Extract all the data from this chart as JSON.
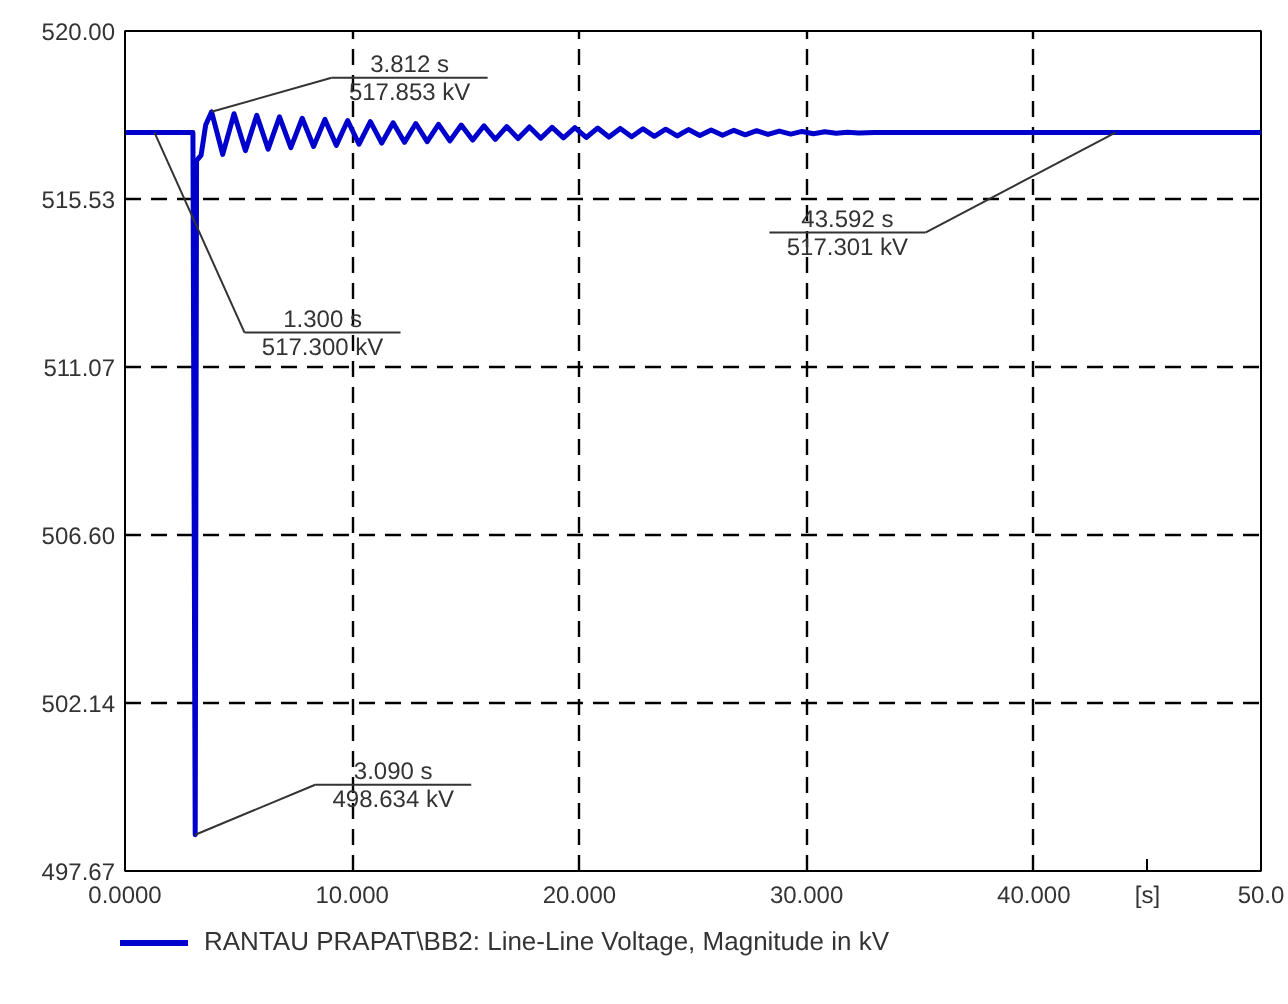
{
  "chart_data": {
    "type": "line",
    "xlabel": "[s]",
    "xlim": [
      0,
      50
    ],
    "ylim": [
      497.67,
      520.0
    ],
    "xticks": [
      {
        "value": 0,
        "label": "0.0000"
      },
      {
        "value": 10,
        "label": "10.000"
      },
      {
        "value": 20,
        "label": "20.000"
      },
      {
        "value": 30,
        "label": "30.000"
      },
      {
        "value": 40,
        "label": "40.000"
      },
      {
        "value": 50,
        "label": "50.0"
      }
    ],
    "yticks": [
      {
        "value": 497.67,
        "label": "497.67"
      },
      {
        "value": 502.14,
        "label": "502.14"
      },
      {
        "value": 506.6,
        "label": "506.60"
      },
      {
        "value": 511.07,
        "label": "511.07"
      },
      {
        "value": 515.53,
        "label": "515.53"
      },
      {
        "value": 520.0,
        "label": "520.00"
      }
    ],
    "grid": true,
    "legend": "bottom",
    "line_style": "solid",
    "marker": "none",
    "x": [
      0,
      2.99,
      3.09,
      3.15,
      3.35,
      3.55,
      3.812,
      4.3,
      4.8,
      5.3,
      5.8,
      6.3,
      6.8,
      7.3,
      7.8,
      8.3,
      8.8,
      9.3,
      9.8,
      10.3,
      10.8,
      11.3,
      11.8,
      12.3,
      12.8,
      13.3,
      13.8,
      14.3,
      14.8,
      15.3,
      15.8,
      16.3,
      16.8,
      17.3,
      17.8,
      18.3,
      18.8,
      19.3,
      19.8,
      20.3,
      20.8,
      21.3,
      21.8,
      22.3,
      22.8,
      23.3,
      23.8,
      24.3,
      24.8,
      25.3,
      25.8,
      26.3,
      26.8,
      27.3,
      27.8,
      28.3,
      28.8,
      29.3,
      29.8,
      30.3,
      30.8,
      31.3,
      31.8,
      32.3,
      33,
      43.592,
      50
    ],
    "series": [
      {
        "name": "RANTAU PRAPAT\\BB2: Line-Line Voltage, Magnitude in kV",
        "color": "#0000cc",
        "values": [
          517.3,
          517.3,
          498.634,
          516.55,
          516.7,
          517.5,
          517.853,
          516.72,
          517.8,
          516.82,
          517.76,
          516.86,
          517.72,
          516.9,
          517.68,
          516.93,
          517.65,
          516.96,
          517.62,
          516.99,
          517.59,
          517.02,
          517.56,
          517.04,
          517.54,
          517.06,
          517.52,
          517.08,
          517.5,
          517.1,
          517.48,
          517.12,
          517.46,
          517.14,
          517.45,
          517.15,
          517.44,
          517.16,
          517.43,
          517.17,
          517.42,
          517.18,
          517.41,
          517.19,
          517.4,
          517.2,
          517.39,
          517.21,
          517.38,
          517.22,
          517.37,
          517.23,
          517.36,
          517.24,
          517.35,
          517.25,
          517.34,
          517.26,
          517.33,
          517.27,
          517.32,
          517.28,
          517.31,
          517.29,
          517.3,
          517.301,
          517.3
        ]
      }
    ],
    "annotations": [
      {
        "text": "3.812 s\n517.853 kV",
        "x": 3.812,
        "y": 517.853
      },
      {
        "text": "1.300 s\n517.300 kV",
        "x": 1.3,
        "y": 517.3
      },
      {
        "text": "3.090 s\n498.634 kV",
        "x": 3.09,
        "y": 498.634
      },
      {
        "text": "43.592 s\n517.301 kV",
        "x": 43.592,
        "y": 517.301
      }
    ]
  }
}
